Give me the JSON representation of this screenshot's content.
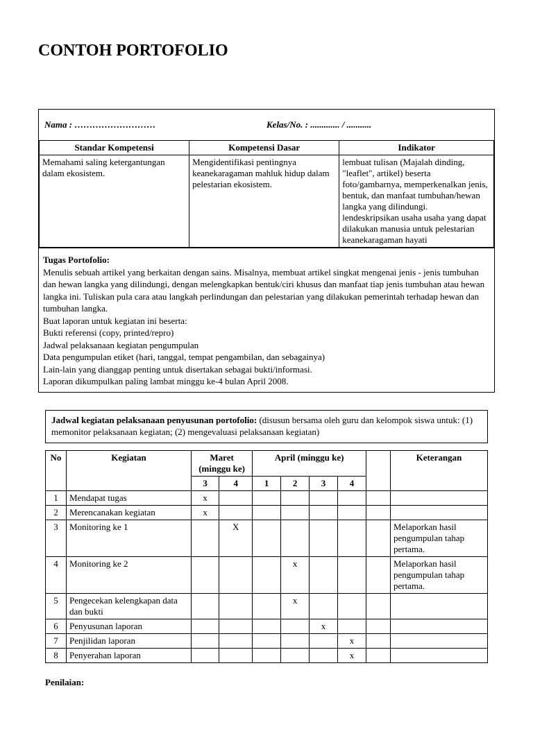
{
  "title": "CONTOH PORTOFOLIO",
  "header": {
    "nama_label": "Nama   : ………………………",
    "kelas_label": "Kelas/No. : ............. / ..........."
  },
  "kompetensi": {
    "headers": [
      "Standar  Kompetensi",
      "Kompetensi   Dasar",
      "Indikator"
    ],
    "cells": [
      "Memahami saling ketergantungan dalam ekosistem.",
      "Mengidentifikasi pentingnya keanekaragaman mahluk hidup dalam pelestarian ekosistem.",
      "lembuat tulisan (Majalah dinding, \"leaflet\", artikel) beserta foto/gambarnya, memperkenalkan jenis, bentuk, dan manfaat tumbuhan/hewan langka yang dilindungi.\nlendeskripsikan usaha usaha yang dapat dilakukan manusia untuk pelestarian keanekaragaman hayati"
    ]
  },
  "tugas": {
    "title": "Tugas Portofolio:",
    "lines": [
      "  Menulis sebuah artikel yang berkaitan dengan sains. Misalnya, membuat artikel singkat mengenai jenis - jenis tumbuhan dan hewan langka yang dilindungi, dengan melengkapkan bentuk/ciri khusus dan manfaat tiap jenis tumbuhan atau hewan langka ini. Tuliskan pula cara atau langkah perlindungan dan pelestarian yang dilakukan pemerintah terhadap hewan dan tumbuhan langka.",
      "  Buat laporan untuk kegiatan ini beserta:",
      "Bukti referensi (copy, printed/repro)",
      "Jadwal pelaksanaan kegiatan pengumpulan",
      "Data pengumpulan etiket (hari, tanggal, tempat pengambilan, dan sebagainya)",
      "Lain-lain yang dianggap penting untuk disertakan sebagai bukti/informasi.",
      "  Laporan dikumpulkan paling lambat minggu ke-4 bulan April 2008."
    ]
  },
  "jadwal": {
    "intro_title": "Jadwal kegiatan pelaksanaan penyusunan portofolio:",
    "intro_text": " (disusun bersama oleh guru dan kelompok siswa untuk: (1) memonitor pelaksanaan kegiatan; (2) mengevaluasi pelaksanaan kegiatan)",
    "headers": {
      "no": "No",
      "kegiatan": "Kegiatan",
      "maret": "Maret (minggu ke)",
      "april": "April  (minggu ke)",
      "keterangan": "Keterangan",
      "weeks_maret": [
        "3",
        "4"
      ],
      "weeks_april": [
        "1",
        "2",
        "3",
        "4"
      ]
    },
    "rows": [
      {
        "no": "1",
        "kegiatan": "Mendapat tugas",
        "marks": [
          "x",
          "",
          "",
          "",
          "",
          ""
        ],
        "ket": ""
      },
      {
        "no": "2",
        "kegiatan": "Merencanakan kegiatan",
        "marks": [
          "x",
          "",
          "",
          "",
          "",
          ""
        ],
        "ket": ""
      },
      {
        "no": "3",
        "kegiatan": "Monitoring ke 1",
        "marks": [
          "",
          "X",
          "",
          "",
          "",
          ""
        ],
        "ket": "Melaporkan hasil pengumpulan tahap pertama."
      },
      {
        "no": "4",
        "kegiatan": "Monitoring ke 2",
        "marks": [
          "",
          "",
          "",
          "x",
          "",
          ""
        ],
        "ket": "Melaporkan hasil pengumpulan tahap pertama."
      },
      {
        "no": "5",
        "kegiatan": "Pengecekan kelengkapan data dan bukti",
        "marks": [
          "",
          "",
          "",
          "x",
          "",
          ""
        ],
        "ket": ""
      },
      {
        "no": "6",
        "kegiatan": "Penyusunan laporan",
        "marks": [
          "",
          "",
          "",
          "",
          "x",
          ""
        ],
        "ket": ""
      },
      {
        "no": "7",
        "kegiatan": "Penjilidan laporan",
        "marks": [
          "",
          "",
          "",
          "",
          "",
          "x"
        ],
        "ket": ""
      },
      {
        "no": "8",
        "kegiatan": "Penyerahan laporan",
        "marks": [
          "",
          "",
          "",
          "",
          "",
          "x"
        ],
        "ket": ""
      }
    ]
  },
  "penilaian": "Penilaian:"
}
